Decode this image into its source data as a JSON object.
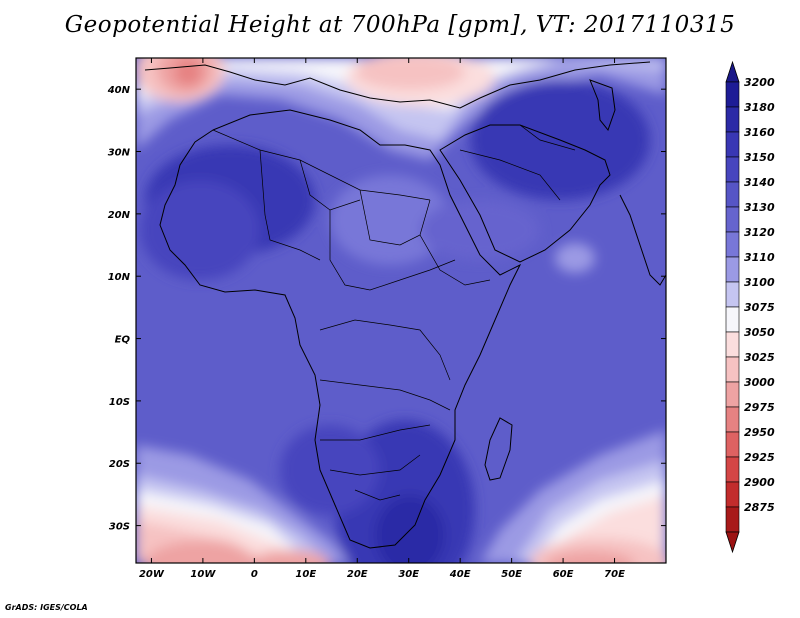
{
  "title": "Geopotential Height at 700hPa [gpm], VT: 2017110315",
  "credit": "GrADS: IGES/COLA",
  "map": {
    "lon_range": [
      -23,
      80
    ],
    "lat_range": [
      -36,
      45
    ],
    "lon_ticks": [
      {
        "value": -20,
        "label": "20W"
      },
      {
        "value": -10,
        "label": "10W"
      },
      {
        "value": 0,
        "label": "0"
      },
      {
        "value": 10,
        "label": "10E"
      },
      {
        "value": 20,
        "label": "20E"
      },
      {
        "value": 30,
        "label": "30E"
      },
      {
        "value": 40,
        "label": "40E"
      },
      {
        "value": 50,
        "label": "50E"
      },
      {
        "value": 60,
        "label": "60E"
      },
      {
        "value": 70,
        "label": "70E"
      }
    ],
    "lat_ticks": [
      {
        "value": 40,
        "label": "40N"
      },
      {
        "value": 30,
        "label": "30N"
      },
      {
        "value": 20,
        "label": "20N"
      },
      {
        "value": 10,
        "label": "10N"
      },
      {
        "value": 0,
        "label": "EQ"
      },
      {
        "value": -10,
        "label": "10S"
      },
      {
        "value": -20,
        "label": "20S"
      },
      {
        "value": -30,
        "label": "30S"
      }
    ]
  },
  "colorbar": {
    "levels": [
      {
        "label": "3200",
        "color": "#1e1c96"
      },
      {
        "label": "3180",
        "color": "#2b2aa6"
      },
      {
        "label": "3160",
        "color": "#3937b4"
      },
      {
        "label": "3150",
        "color": "#4745be"
      },
      {
        "label": "3140",
        "color": "#5655c6"
      },
      {
        "label": "3130",
        "color": "#6664ce"
      },
      {
        "label": "3120",
        "color": "#7877d8"
      },
      {
        "label": "3110",
        "color": "#9b9ae4"
      },
      {
        "label": "3100",
        "color": "#c5c5f1"
      },
      {
        "label": "3075",
        "color": "#f6f6fb"
      },
      {
        "label": "3050",
        "color": "#fbdede"
      },
      {
        "label": "3025",
        "color": "#f6c2c2"
      },
      {
        "label": "3000",
        "color": "#eea3a3"
      },
      {
        "label": "2975",
        "color": "#e68282"
      },
      {
        "label": "2950",
        "color": "#de6262"
      },
      {
        "label": "2925",
        "color": "#d44646"
      },
      {
        "label": "2900",
        "color": "#c22c2c"
      },
      {
        "label": "2875",
        "color": "#a81a1a"
      }
    ],
    "top_triangle_color": "#1a1888",
    "bottom_triangle_color": "#9c1212"
  }
}
